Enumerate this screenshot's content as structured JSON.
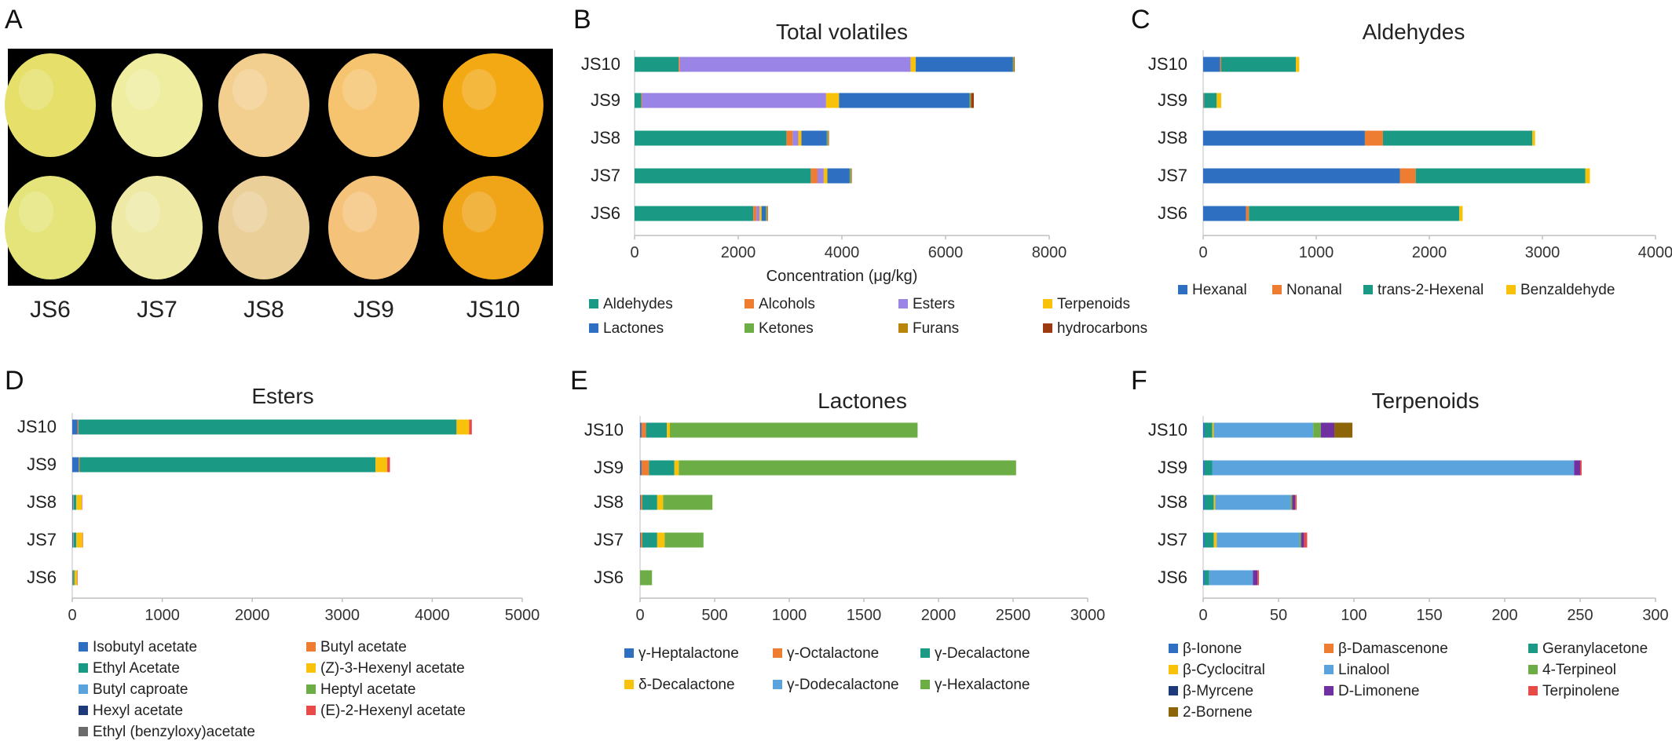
{
  "panel_letters": [
    "A",
    "B",
    "C",
    "D",
    "E",
    "F"
  ],
  "photo": {
    "labels": [
      "JS6",
      "JS7",
      "JS8",
      "JS9",
      "JS10"
    ],
    "fruit_colors_top": [
      "#e6e06a",
      "#eeeda0",
      "#f2cf8e",
      "#f6c46e",
      "#f3a914"
    ],
    "fruit_colors_bottom": [
      "#e4e47a",
      "#eeeaa6",
      "#ebcf98",
      "#f5c27a",
      "#f0a418"
    ]
  },
  "chart_data": [
    {
      "id": "B",
      "type": "bar",
      "orientation": "horizontal",
      "stacked": true,
      "title": "Total volatiles",
      "xlabel": "Concentration (μg/kg)",
      "xlim": [
        0,
        8000
      ],
      "xticks": [
        "0",
        "2000",
        "4000",
        "6000",
        "8000"
      ],
      "categories": [
        "JS10",
        "JS9",
        "JS8",
        "JS7",
        "JS6"
      ],
      "legend_columns": 4,
      "series": [
        {
          "name": "Aldehydes",
          "color": "#1a9985",
          "values": [
            850,
            130,
            2930,
            3400,
            2290
          ]
        },
        {
          "name": "Alcohols",
          "color": "#ee7d31",
          "values": [
            25,
            15,
            120,
            130,
            60
          ]
        },
        {
          "name": "Esters",
          "color": "#9a84e6",
          "values": [
            4450,
            3550,
            110,
            120,
            60
          ]
        },
        {
          "name": "Terpenoids",
          "color": "#f8c20a",
          "values": [
            100,
            250,
            60,
            70,
            40
          ]
        },
        {
          "name": "Lactones",
          "color": "#2e6fc1",
          "values": [
            1870,
            2520,
            490,
            430,
            80
          ]
        },
        {
          "name": "Ketones",
          "color": "#6dad45",
          "values": [
            20,
            20,
            20,
            20,
            20
          ]
        },
        {
          "name": "Furans",
          "color": "#b8860b",
          "values": [
            10,
            10,
            10,
            10,
            10
          ]
        },
        {
          "name": "hydrocarbons",
          "color": "#9c3a12",
          "values": [
            10,
            50,
            10,
            10,
            10
          ]
        }
      ]
    },
    {
      "id": "C",
      "type": "bar",
      "orientation": "horizontal",
      "stacked": true,
      "title": "Aldehydes",
      "xlabel": "",
      "xlim": [
        0,
        4000
      ],
      "xticks": [
        "0",
        "1000",
        "2000",
        "3000",
        "4000"
      ],
      "categories": [
        "JS10",
        "JS9",
        "JS8",
        "JS7",
        "JS6"
      ],
      "legend_columns": 4,
      "series": [
        {
          "name": "Hexanal",
          "color": "#2e6fc1",
          "values": [
            150,
            5,
            1430,
            1740,
            380
          ]
        },
        {
          "name": "Nonanal",
          "color": "#ee7d31",
          "values": [
            10,
            5,
            160,
            140,
            25
          ]
        },
        {
          "name": "trans-2-Hexenal",
          "color": "#1a9985",
          "values": [
            660,
            110,
            1320,
            1500,
            1860
          ]
        },
        {
          "name": "Benzaldehyde",
          "color": "#f8c20a",
          "values": [
            30,
            40,
            25,
            40,
            30
          ]
        }
      ]
    },
    {
      "id": "D",
      "type": "bar",
      "orientation": "horizontal",
      "stacked": true,
      "title": "Esters",
      "xlabel": "",
      "xlim": [
        0,
        5000
      ],
      "xticks": [
        "0",
        "1000",
        "2000",
        "3000",
        "4000",
        "5000"
      ],
      "categories": [
        "JS10",
        "JS9",
        "JS8",
        "JS7",
        "JS6"
      ],
      "legend_columns": 2,
      "series": [
        {
          "name": "Isobutyl acetate",
          "color": "#2e6fc1",
          "values": [
            60,
            70,
            10,
            10,
            5
          ]
        },
        {
          "name": "Butyl acetate",
          "color": "#ee7d31",
          "values": [
            10,
            10,
            5,
            5,
            5
          ]
        },
        {
          "name": "Ethyl Acetate",
          "color": "#1a9985",
          "values": [
            4200,
            3290,
            30,
            30,
            15
          ]
        },
        {
          "name": "(Z)-3-Hexenyl acetate",
          "color": "#f8c20a",
          "values": [
            140,
            130,
            60,
            70,
            30
          ]
        },
        {
          "name": "Butyl caproate",
          "color": "#5ba3dc",
          "values": [
            0,
            0,
            0,
            0,
            0
          ]
        },
        {
          "name": "Heptyl acetate",
          "color": "#6dad45",
          "values": [
            0,
            0,
            0,
            0,
            0
          ]
        },
        {
          "name": "Hexyl acetate",
          "color": "#1f3a7a",
          "values": [
            0,
            0,
            0,
            0,
            0
          ]
        },
        {
          "name": "(E)-2-Hexenyl acetate",
          "color": "#e84a4a",
          "values": [
            30,
            30,
            5,
            5,
            5
          ]
        },
        {
          "name": "Ethyl (benzyloxy)acetate",
          "color": "#6b6b6b",
          "values": [
            0,
            0,
            0,
            0,
            0
          ]
        }
      ]
    },
    {
      "id": "E",
      "type": "bar",
      "orientation": "horizontal",
      "stacked": true,
      "title": "Lactones",
      "xlabel": "",
      "xlim": [
        0,
        3000
      ],
      "xticks": [
        "0",
        "500",
        "1000",
        "1500",
        "2000",
        "2500",
        "3000"
      ],
      "categories": [
        "JS10",
        "JS9",
        "JS8",
        "JS7",
        "JS6"
      ],
      "legend_columns": 3,
      "series": [
        {
          "name": "γ-Heptalactone",
          "color": "#2e6fc1",
          "values": [
            10,
            10,
            5,
            5,
            0
          ]
        },
        {
          "name": "γ-Octalactone",
          "color": "#ee7d31",
          "values": [
            30,
            50,
            10,
            10,
            0
          ]
        },
        {
          "name": "γ-Decalactone",
          "color": "#1a9985",
          "values": [
            140,
            170,
            100,
            100,
            0
          ]
        },
        {
          "name": "δ-Decalactone",
          "color": "#f8c20a",
          "values": [
            20,
            30,
            40,
            50,
            0
          ]
        },
        {
          "name": "γ-Dodecalactone",
          "color": "#5ba3dc",
          "values": [
            0,
            0,
            0,
            0,
            0
          ]
        },
        {
          "name": "γ-Hexalactone",
          "color": "#6dad45",
          "values": [
            1660,
            2260,
            330,
            260,
            80
          ]
        }
      ]
    },
    {
      "id": "F",
      "type": "bar",
      "orientation": "horizontal",
      "stacked": true,
      "title": "Terpenoids",
      "xlabel": "",
      "xlim": [
        0,
        300
      ],
      "xticks": [
        "0",
        "50",
        "100",
        "150",
        "200",
        "250",
        "300"
      ],
      "categories": [
        "JS10",
        "JS9",
        "JS8",
        "JS7",
        "JS6"
      ],
      "legend_columns": 3,
      "series": [
        {
          "name": "β-Ionone",
          "color": "#2e6fc1",
          "values": [
            1,
            1,
            1,
            1,
            1
          ]
        },
        {
          "name": "β-Damascenone",
          "color": "#ee7d31",
          "values": [
            0,
            0,
            0,
            0,
            0
          ]
        },
        {
          "name": "Geranylacetone",
          "color": "#1a9985",
          "values": [
            5,
            5,
            6,
            6,
            3
          ]
        },
        {
          "name": "β-Cyclocitral",
          "color": "#f8c20a",
          "values": [
            1,
            0,
            1,
            2,
            0
          ]
        },
        {
          "name": "Linalool",
          "color": "#5ba3dc",
          "values": [
            66,
            240,
            50,
            55,
            29
          ]
        },
        {
          "name": "4-Terpineol",
          "color": "#6dad45",
          "values": [
            5,
            0,
            1,
            1,
            0
          ]
        },
        {
          "name": "β-Myrcene",
          "color": "#1f3a7a",
          "values": [
            0,
            0,
            0,
            0,
            0
          ]
        },
        {
          "name": "D-Limonene",
          "color": "#7030a0",
          "values": [
            9,
            4,
            2,
            2,
            3
          ]
        },
        {
          "name": "Terpinolene",
          "color": "#e84a4a",
          "values": [
            0,
            1,
            1,
            2,
            1
          ]
        },
        {
          "name": "2-Bornene",
          "color": "#8b6508",
          "values": [
            12,
            0,
            0,
            0,
            0
          ]
        }
      ]
    }
  ]
}
